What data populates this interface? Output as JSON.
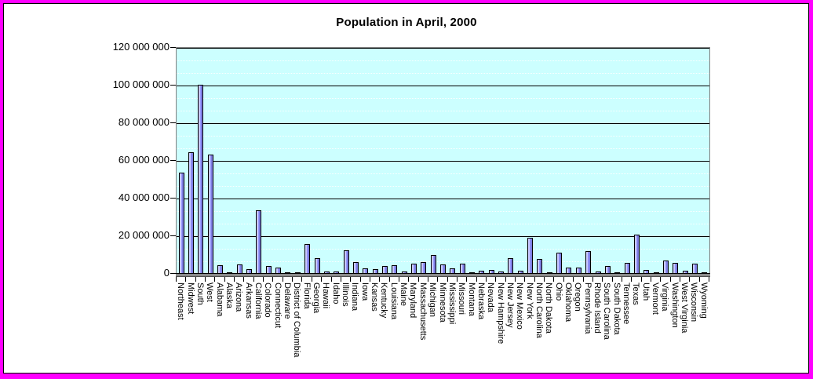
{
  "window": {
    "frame_border_color": "#FF00FF",
    "inner_border_color": "#000000",
    "background_color": "#FFFFFF"
  },
  "chart_data": {
    "type": "bar",
    "title": "Population in April, 2000",
    "xlabel": "",
    "ylabel": "",
    "legend": "none",
    "ylim": [
      0,
      120000000
    ],
    "ytick_interval": 20000000,
    "yticks": [
      0,
      20000000,
      40000000,
      60000000,
      80000000,
      100000000,
      120000000
    ],
    "ytick_labels": [
      "0",
      "20 000 000",
      "40 000 000",
      "60 000 000",
      "80 000 000",
      "100 000 000",
      "120 000 000"
    ],
    "grid": {
      "major_horizontal": "solid black every 20 000 000",
      "minor_horizontal": "dotted white"
    },
    "categories": [
      "Northeast",
      "Midwest",
      "South",
      "West",
      "Alabama",
      "Alaska",
      "Arizona",
      "Arkansas",
      "California",
      "Colorado",
      "Connecticut",
      "Delaware",
      "District of Columbia",
      "Florida",
      "Georgia",
      "Hawaii",
      "Idaho",
      "Illinois",
      "Indiana",
      "Iowa",
      "Kansas",
      "Kentucky",
      "Louisiana",
      "Maine",
      "Maryland",
      "Massachusetts",
      "Michigan",
      "Minnesota",
      "Mississippi",
      "Missouri",
      "Montana",
      "Nebraska",
      "Nevada",
      "New Hampshire",
      "New Jersey",
      "New Mexico",
      "New York",
      "North Carolina",
      "North Dakota",
      "Ohio",
      "Oklahoma",
      "Oregon",
      "Pennsylvania",
      "Rhode Island",
      "South Carolina",
      "South Dakota",
      "Tennessee",
      "Texas",
      "Utah",
      "Vermont",
      "Virginia",
      "Washington",
      "West Virginia",
      "Wisconsin",
      "Wyoming"
    ],
    "values": [
      53594378,
      64392776,
      100236820,
      63197932,
      4447100,
      626932,
      5130632,
      2673400,
      33871648,
      4301261,
      3405565,
      783600,
      572059,
      15982378,
      8186453,
      1211537,
      1293953,
      12419293,
      6080485,
      2926324,
      2688418,
      4041769,
      4468976,
      1274923,
      5296486,
      6349097,
      9938444,
      4919479,
      2844658,
      5595211,
      902195,
      1711263,
      1998257,
      1235786,
      8414350,
      1819046,
      18976457,
      8049313,
      642200,
      11353140,
      3450654,
      3421399,
      12281054,
      1048319,
      4012012,
      754844,
      5689283,
      20851820,
      2233169,
      608827,
      7078515,
      5894121,
      1808344,
      5363675,
      493782
    ],
    "colors": {
      "bar_fill": "#9999FF",
      "bar_border": "#000000",
      "plot_background": "#CCFFFF",
      "plot_border": "#808080",
      "major_grid": "#000000",
      "minor_grid": "#FFFFFF",
      "floor_strip": "#8A8A8A",
      "text": "#000000"
    }
  }
}
